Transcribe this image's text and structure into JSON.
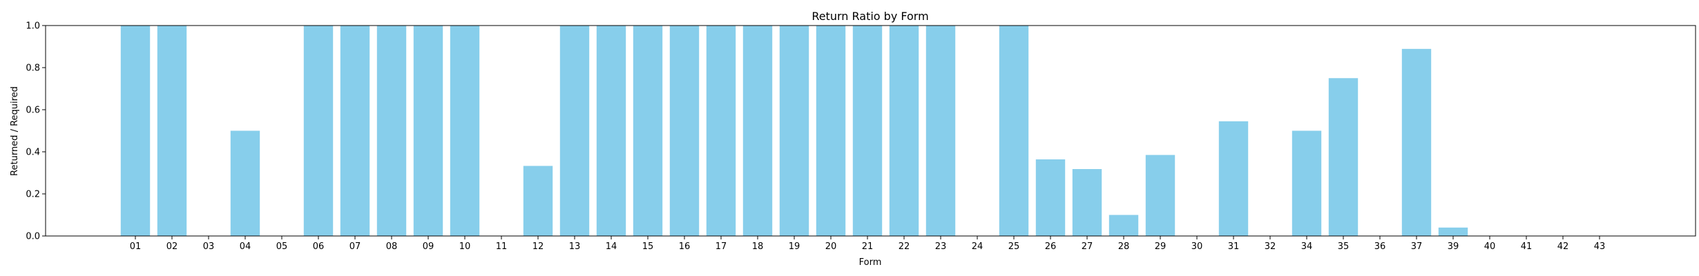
{
  "chart_data": {
    "type": "bar",
    "title": "Return Ratio by Form",
    "xlabel": "Form",
    "ylabel": "Returned / Required",
    "ylim": [
      0,
      1.0
    ],
    "yticks": [
      "0.0",
      "0.2",
      "0.4",
      "0.6",
      "0.8",
      "1.0"
    ],
    "categories": [
      "01",
      "02",
      "03",
      "04",
      "05",
      "06",
      "07",
      "08",
      "09",
      "10",
      "11",
      "12",
      "13",
      "14",
      "15",
      "16",
      "17",
      "18",
      "19",
      "20",
      "21",
      "22",
      "23",
      "24",
      "25",
      "26",
      "27",
      "28",
      "29",
      "30",
      "31",
      "32",
      "34",
      "35",
      "36",
      "37",
      "39",
      "40",
      "41",
      "42",
      "43"
    ],
    "values": [
      1.0,
      1.0,
      0,
      0.5,
      0,
      1.0,
      1.0,
      1.0,
      1.0,
      1.0,
      0,
      0.333,
      1.0,
      1.0,
      1.0,
      1.0,
      1.0,
      1.0,
      1.0,
      1.0,
      1.0,
      1.0,
      1.0,
      0,
      1.0,
      0.364,
      0.318,
      0.1,
      0.385,
      0,
      0.545,
      0,
      0.5,
      0.75,
      0,
      0.889,
      0.04,
      0,
      0,
      0,
      0
    ],
    "bar_color": "#87ceeb",
    "grid": false
  }
}
